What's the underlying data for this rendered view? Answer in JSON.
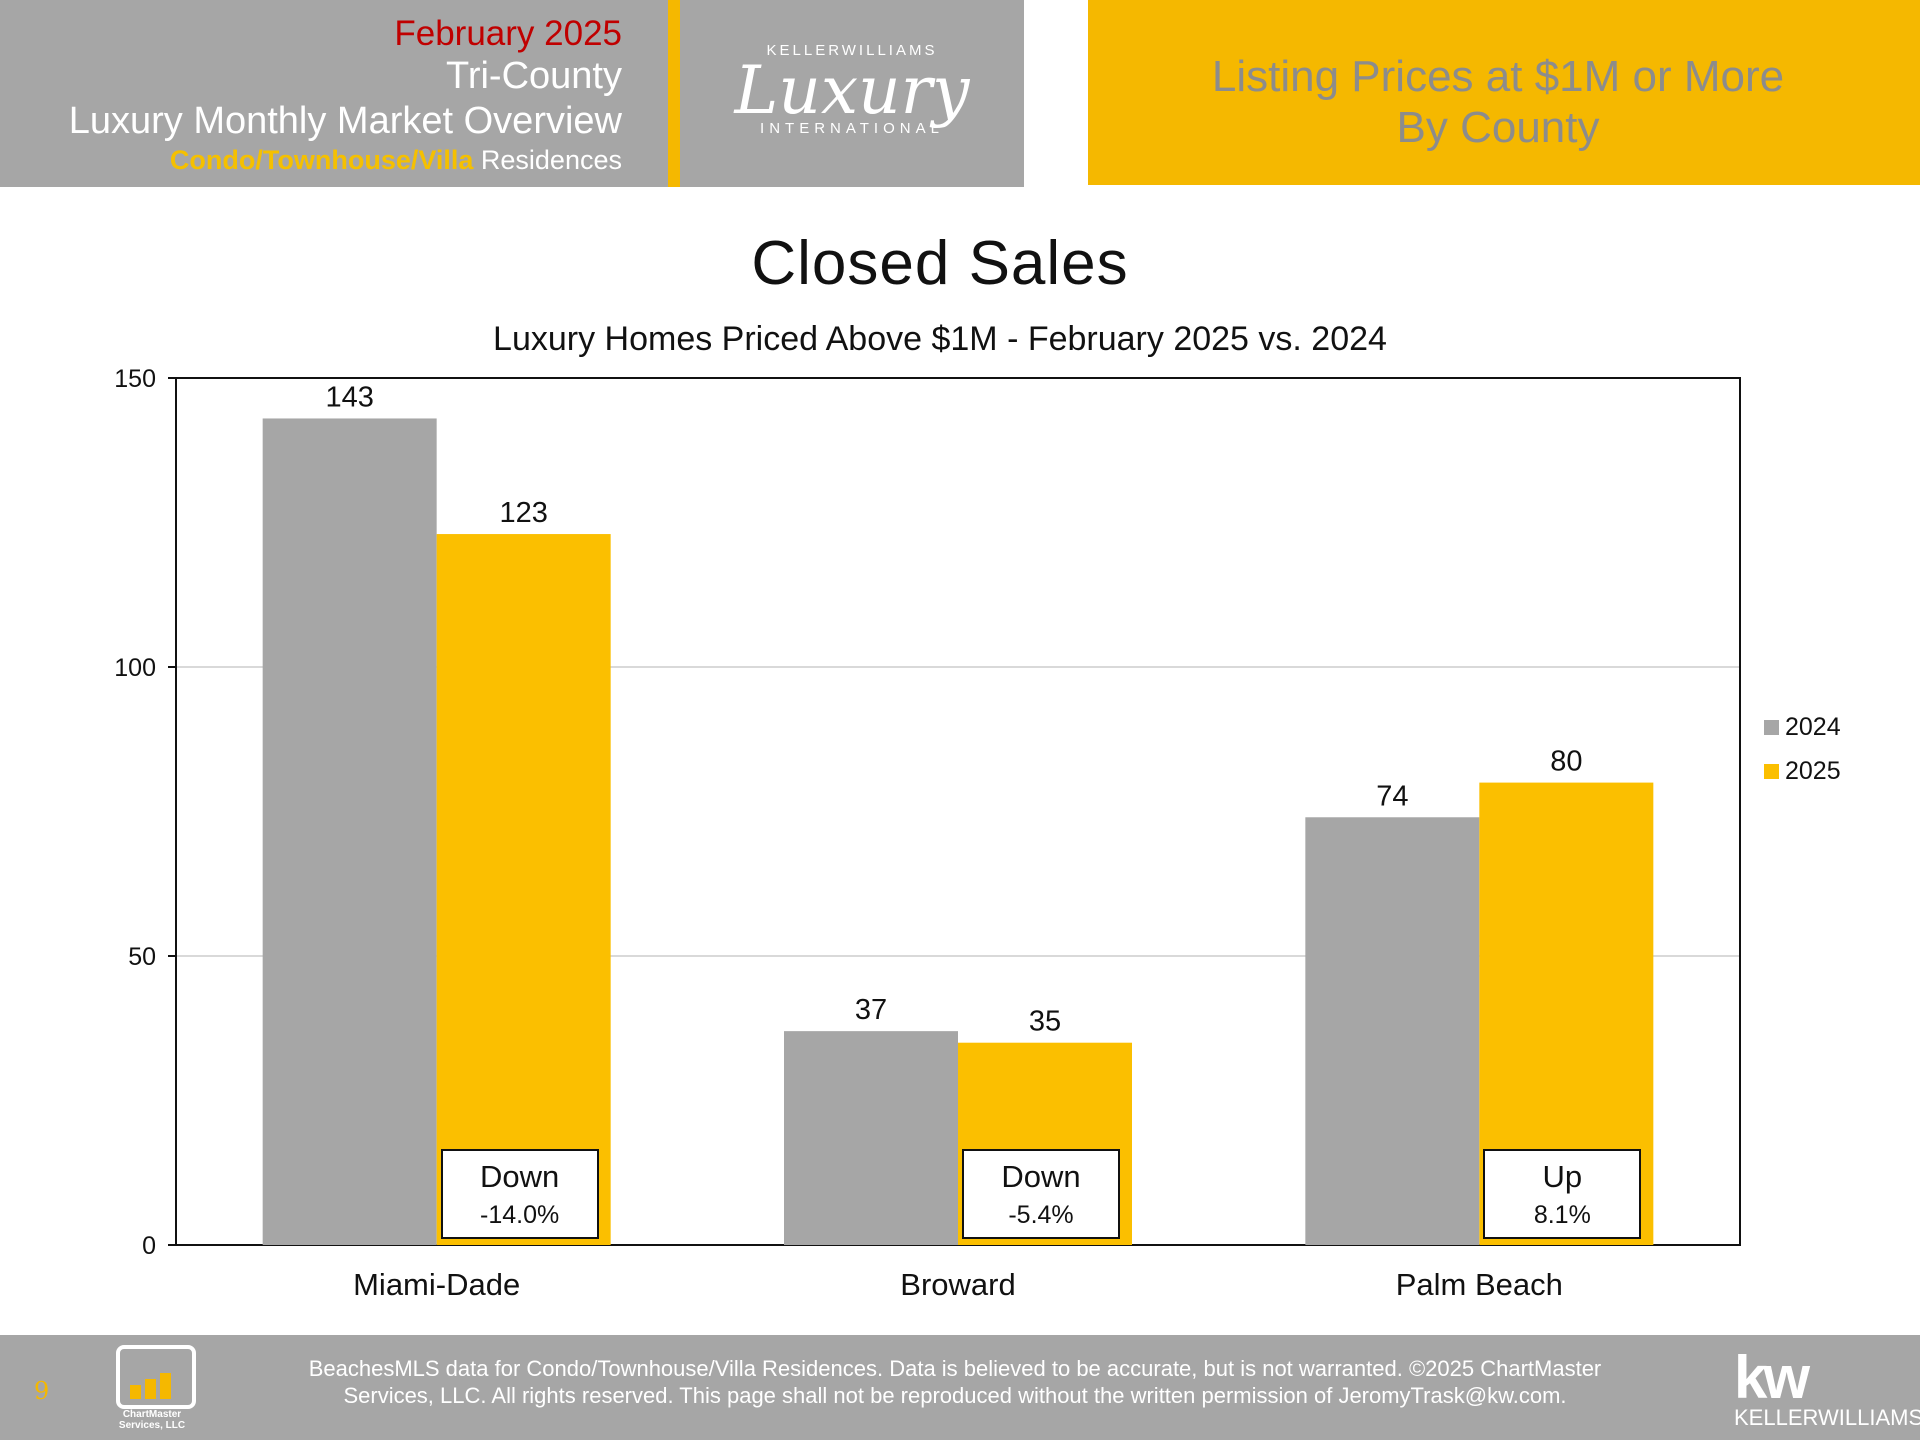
{
  "header": {
    "date": "February 2025",
    "region": "Tri-County",
    "report": "Luxury Monthly Market Overview",
    "property_type": "Condo/Townhouse/Villa",
    "property_suffix": " Residences",
    "logo_top": "KELLERWILLIAMS",
    "logo_main": "Luxury",
    "logo_bottom": "INTERNATIONAL",
    "right_line1": "Listing Prices at $1M or More",
    "right_line2": "By County"
  },
  "chart_data": {
    "type": "bar",
    "title": "Closed Sales",
    "subtitle": "Luxury Homes Priced Above $1M - February 2025 vs. 2024",
    "categories": [
      "Miami-Dade",
      "Broward",
      "Palm Beach"
    ],
    "series": [
      {
        "name": "2024",
        "values": [
          143,
          37,
          74
        ],
        "color": "#a6a6a6"
      },
      {
        "name": "2025",
        "values": [
          123,
          35,
          80
        ],
        "color": "#fbbf00"
      }
    ],
    "ylim": [
      0,
      150
    ],
    "yticks": [
      0,
      50,
      100,
      150
    ],
    "grid": true,
    "legend": "right",
    "annotations": [
      {
        "direction": "Down",
        "change": "-14.0%"
      },
      {
        "direction": "Down",
        "change": "-5.4%"
      },
      {
        "direction": "Up",
        "change": "8.1%"
      }
    ]
  },
  "footer": {
    "page_number": "9",
    "chartmaster_logo_text": "ChartMaster Services, LLC",
    "line1": "BeachesMLS data for Condo/Townhouse/Villa Residences.  Data is believed to be accurate, but is not warranted.   ©2025  ChartMaster",
    "line2": "Services, LLC.  All rights reserved. This page shall not be reproduced without the written permission of JeromyTrask@kw.com.",
    "kw_logo": "kw",
    "kw_name": "KELLERWILLIAMS."
  }
}
